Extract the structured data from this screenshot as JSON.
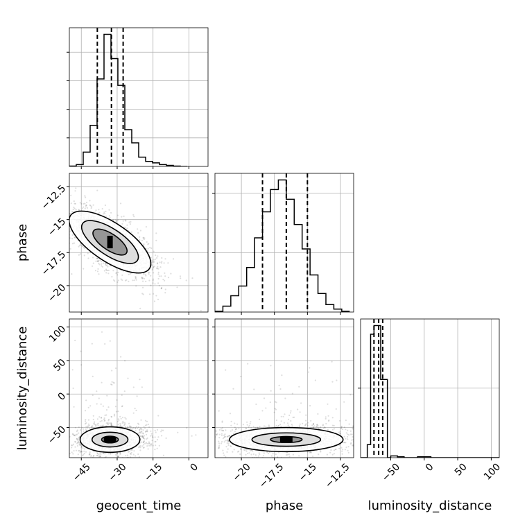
{
  "chart_data": {
    "type": "corner",
    "parameters": [
      {
        "name": "geocent_time",
        "range": [
          -50,
          8
        ],
        "ticks": [
          -45,
          -30,
          -15,
          0
        ],
        "quantiles": [
          -38.3,
          -32.4,
          -27.5
        ]
      },
      {
        "name": "phase",
        "range": [
          -22,
          -11.5
        ],
        "ticks": [
          -20.0,
          -17.5,
          -15.0,
          -12.5
        ],
        "quantiles": [
          -18.4,
          -16.6,
          -15.0
        ]
      },
      {
        "name": "luminosity_distance",
        "range": [
          -95,
          112
        ],
        "ticks": [
          -50,
          0,
          50,
          100
        ],
        "quantiles": [
          -75,
          -68,
          -62
        ]
      }
    ],
    "histograms": [
      {
        "param": "geocent_time",
        "bin_edges": [
          -50,
          -47.1,
          -44.2,
          -41.3,
          -38.4,
          -35.5,
          -32.6,
          -29.7,
          -26.8,
          -23.9,
          -21,
          -18.1,
          -15.2,
          -12.3,
          -9.4,
          -6.5,
          -3.6,
          -0.7
        ],
        "counts": [
          1,
          5,
          40,
          115,
          245,
          370,
          302,
          227,
          103,
          66,
          26,
          14,
          10,
          5,
          3,
          1,
          0
        ]
      },
      {
        "param": "phase",
        "bin_edges": [
          -22,
          -21.4,
          -20.8,
          -20.2,
          -19.6,
          -19,
          -18.4,
          -17.8,
          -17.2,
          -16.6,
          -16,
          -15.4,
          -14.8,
          -14.2,
          -13.6,
          -13,
          -12.4,
          -11.8
        ],
        "counts": [
          1,
          8,
          22,
          35,
          60,
          100,
          135,
          165,
          178,
          152,
          118,
          85,
          50,
          25,
          10,
          4,
          1
        ]
      },
      {
        "param": "luminosity_distance",
        "bin_edges": [
          -95,
          -85,
          -80,
          -75,
          -70,
          -65,
          -60,
          -55,
          -50,
          -45,
          -40,
          -30,
          -20,
          -10,
          10,
          20,
          112
        ],
        "counts": [
          0,
          15,
          142,
          152,
          152,
          90,
          90,
          0,
          2,
          2,
          1,
          0,
          0,
          1,
          0,
          0
        ]
      }
    ],
    "contours": [
      {
        "x_param": "geocent_time",
        "y_param": "phase",
        "center": [
          -33,
          -16.7
        ],
        "levels": [
          {
            "sx": 8.0,
            "sy": 3.6
          },
          {
            "sx": 5.5,
            "sy": 2.5
          },
          {
            "sx": 3.4,
            "sy": 1.5
          }
        ],
        "rotation": -56
      },
      {
        "x_param": "geocent_time",
        "y_param": "luminosity_distance",
        "center": [
          -33,
          -68
        ],
        "levels": [
          {
            "sx": 12.5,
            "sy": 19
          },
          {
            "sx": 7.5,
            "sy": 11
          },
          {
            "sx": 3.5,
            "sy": 5
          }
        ],
        "rotation": 0
      },
      {
        "x_param": "phase",
        "y_param": "luminosity_distance",
        "center": [
          -16.6,
          -68
        ],
        "levels": [
          {
            "sx": 4.3,
            "sy": 18
          },
          {
            "sx": 2.6,
            "sy": 10
          },
          {
            "sx": 1.2,
            "sy": 4.5
          }
        ],
        "rotation": 0
      }
    ],
    "grid": true
  }
}
